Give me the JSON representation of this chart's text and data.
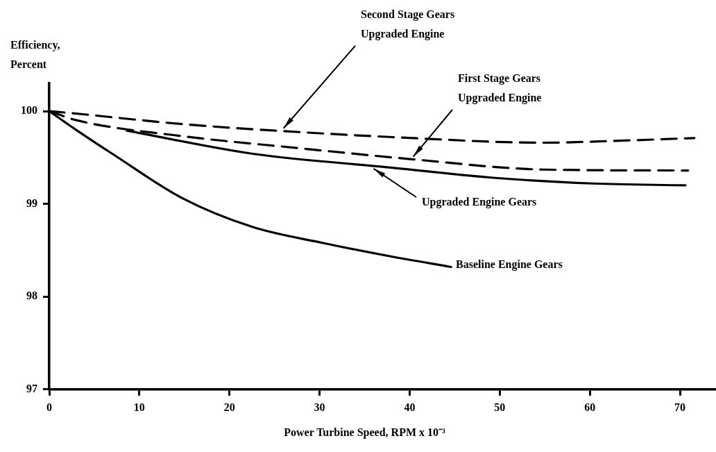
{
  "chart_data": {
    "type": "line",
    "xlabel": "Power Turbine Speed, RPM x 10⁻³",
    "ylabel": "Efficiency, Percent",
    "xlim": [
      0,
      74
    ],
    "ylim": [
      97,
      100.3
    ],
    "xticks": [
      0,
      10,
      20,
      30,
      40,
      50,
      60,
      70
    ],
    "yticks": [
      97,
      98,
      99,
      100
    ],
    "grid": false,
    "legend": false,
    "marker": "none",
    "series": [
      {
        "name": "Second Stage Gears Upgraded Engine",
        "color": "#000000",
        "line_style": "dashed",
        "x": [
          0,
          2.3,
          14.8,
          25.1,
          38.1,
          54.9,
          62.9,
          71.6
        ],
        "values": [
          100,
          99.98,
          99.86,
          99.79,
          99.72,
          99.66,
          99.68,
          99.71
        ]
      },
      {
        "name": "First Stage Gears Upgraded Engine",
        "color": "#000000",
        "line_style": "dashed",
        "x": [
          0,
          3.1,
          14.8,
          27.8,
          40.4,
          54.9,
          70.9
        ],
        "values": [
          100,
          99.9,
          99.73,
          99.6,
          99.48,
          99.37,
          99.36
        ]
      },
      {
        "name": "Upgraded Engine Gears",
        "color": "#000000",
        "line_style": "solid",
        "x": [
          8.6,
          22.6,
          38.1,
          49.5,
          60.3,
          70.6
        ],
        "values": [
          99.79,
          99.54,
          99.39,
          99.28,
          99.22,
          99.2
        ]
      },
      {
        "name": "Baseline Engine Gears",
        "color": "#000000",
        "line_style": "solid",
        "x": [
          0,
          3.1,
          7,
          14.8,
          22.6,
          30.3,
          38.1,
          44.6
        ],
        "values": [
          100,
          99.79,
          99.54,
          99.06,
          98.75,
          98.58,
          98.43,
          98.32
        ]
      }
    ]
  }
}
